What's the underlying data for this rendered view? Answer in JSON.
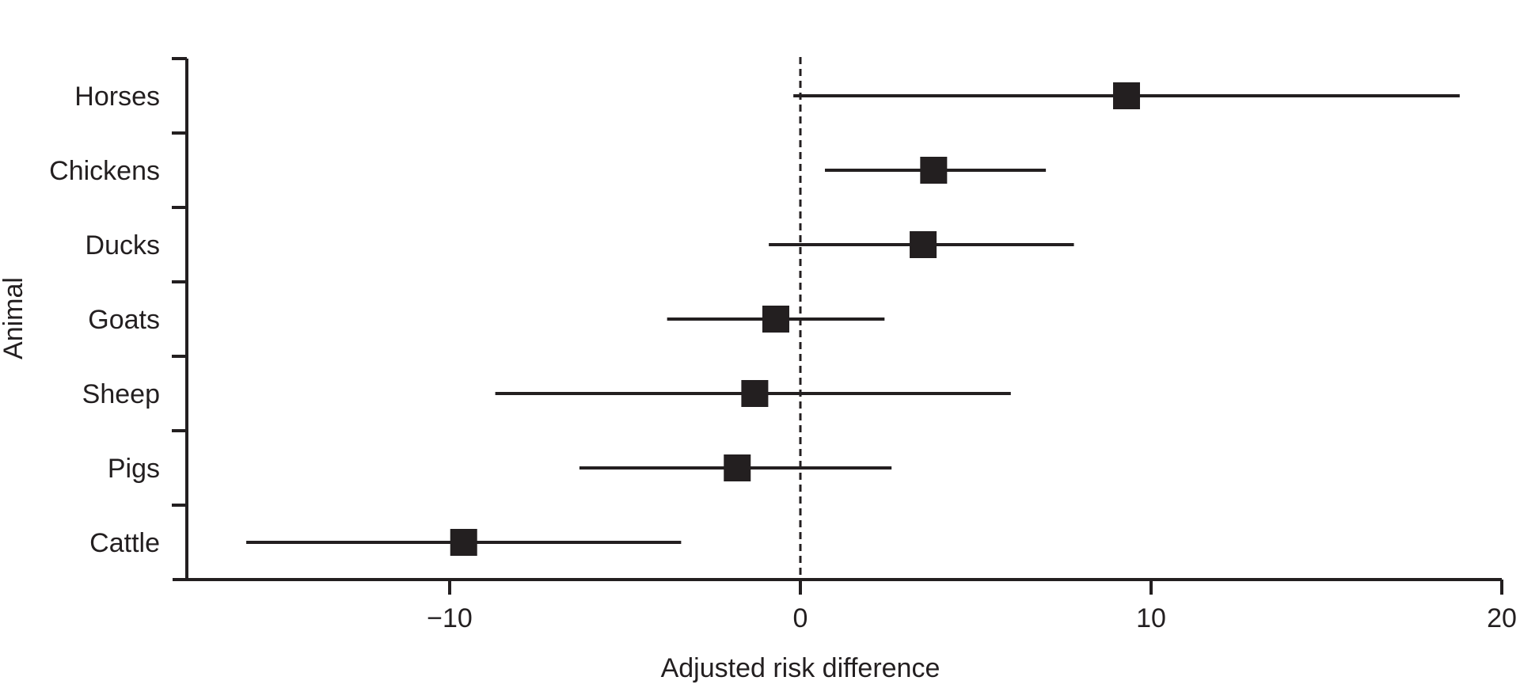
{
  "chart_data": {
    "type": "forest",
    "xlabel": "Adjusted risk difference",
    "ylabel": "Animal",
    "xlim": [
      -18,
      20
    ],
    "xticks": [
      -10,
      0,
      10,
      20
    ],
    "xtick_labels": [
      "−10",
      "0",
      "10",
      "20"
    ],
    "reference_line": 0,
    "grid": false,
    "rows": [
      {
        "label": "Horses",
        "estimate": 9.3,
        "ci_low": -0.2,
        "ci_high": 18.8
      },
      {
        "label": "Chickens",
        "estimate": 3.8,
        "ci_low": 0.7,
        "ci_high": 7.0
      },
      {
        "label": "Ducks",
        "estimate": 3.5,
        "ci_low": -0.9,
        "ci_high": 7.8
      },
      {
        "label": "Goats",
        "estimate": -0.7,
        "ci_low": -3.8,
        "ci_high": 2.4
      },
      {
        "label": "Sheep",
        "estimate": -1.3,
        "ci_low": -8.7,
        "ci_high": 6.0
      },
      {
        "label": "Pigs",
        "estimate": -1.8,
        "ci_low": -6.3,
        "ci_high": 2.6
      },
      {
        "label": "Cattle",
        "estimate": -9.6,
        "ci_low": -15.8,
        "ci_high": -3.4
      }
    ],
    "colors": {
      "ink": "#231f20"
    }
  }
}
